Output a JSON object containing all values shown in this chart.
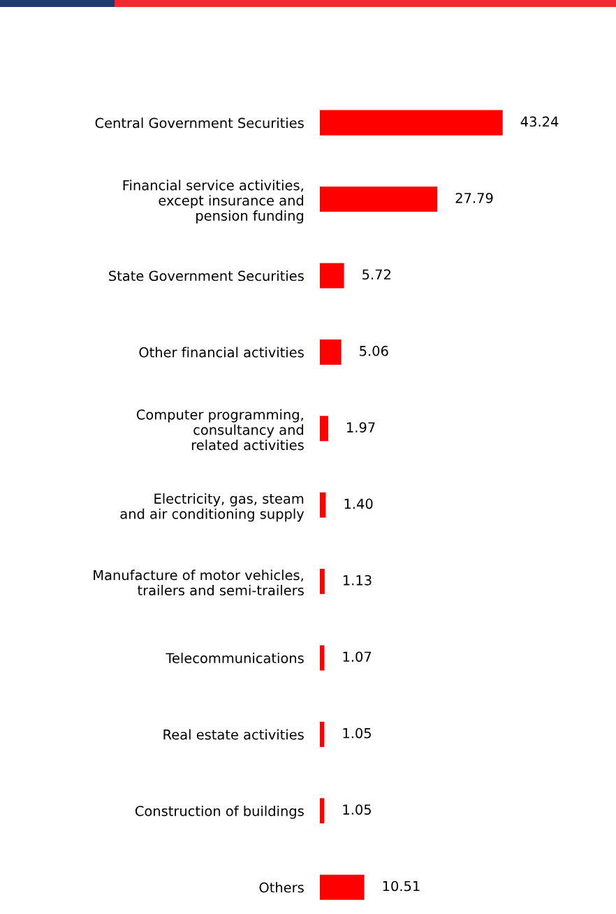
{
  "chart_data": {
    "type": "bar",
    "orientation": "horizontal",
    "categories": [
      "Central Government Securities",
      "Financial service activities,\nexcept insurance and\npension funding",
      "State Government Securities",
      "Other financial activities",
      "Computer programming,\nconsultancy and\nrelated activities",
      "Electricity, gas, steam\nand air conditioning supply",
      "Manufacture of motor vehicles,\ntrailers and semi-trailers",
      "Telecommunications",
      "Real estate activities",
      "Construction of buildings",
      "Others"
    ],
    "values": [
      43.24,
      27.79,
      5.72,
      5.06,
      1.97,
      1.4,
      1.13,
      1.07,
      1.05,
      1.05,
      10.51
    ],
    "value_labels": [
      "43.24",
      "27.79",
      "5.72",
      "5.06",
      "1.97",
      "1.40",
      "1.13",
      "1.07",
      "1.05",
      "1.05",
      "10.51"
    ],
    "color": "#ff0000",
    "grid": false,
    "legend": false
  }
}
